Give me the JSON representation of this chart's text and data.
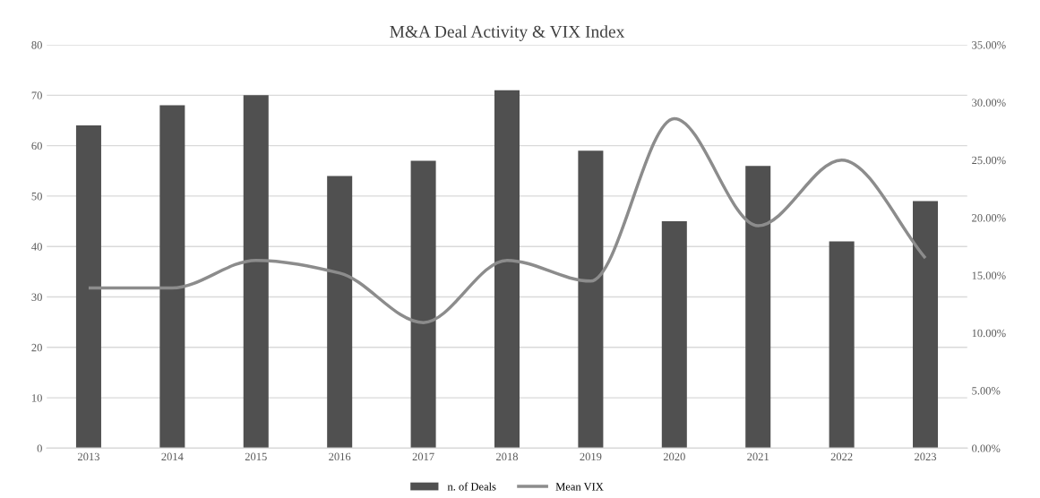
{
  "chart_data": {
    "type": "bar",
    "title": "M&A Deal Activity & VIX Index",
    "categories": [
      "2013",
      "2014",
      "2015",
      "2016",
      "2017",
      "2018",
      "2019",
      "2020",
      "2021",
      "2022",
      "2023"
    ],
    "series": [
      {
        "name": "n. of Deals",
        "color": "#505050",
        "values": [
          64,
          68,
          70,
          54,
          57,
          71,
          59,
          45,
          56,
          41,
          49
        ]
      },
      {
        "name": "Mean VIX",
        "type": "line",
        "axis": "y2",
        "color": "#8c8c8c",
        "values": [
          13.9,
          13.9,
          16.3,
          15.2,
          10.9,
          16.3,
          14.5,
          28.6,
          19.3,
          25.0,
          16.5
        ]
      }
    ],
    "ylim": [
      0,
      80
    ],
    "yticks": [
      0,
      10,
      20,
      30,
      40,
      50,
      60,
      70,
      80
    ],
    "y2lim": [
      0,
      35
    ],
    "y2ticks": [
      {
        "value": 0,
        "label": "0.00%"
      },
      {
        "value": 5,
        "label": "5.00%"
      },
      {
        "value": 10,
        "label": "10.00%"
      },
      {
        "value": 15,
        "label": "15.00%"
      },
      {
        "value": 20,
        "label": "20.00%"
      },
      {
        "value": 25,
        "label": "25.00%"
      },
      {
        "value": 30,
        "label": "30.00%"
      },
      {
        "value": 35,
        "label": "35.00%"
      }
    ],
    "grid": "y",
    "legend": "bottom",
    "marker": "none",
    "line_style": "solid"
  }
}
